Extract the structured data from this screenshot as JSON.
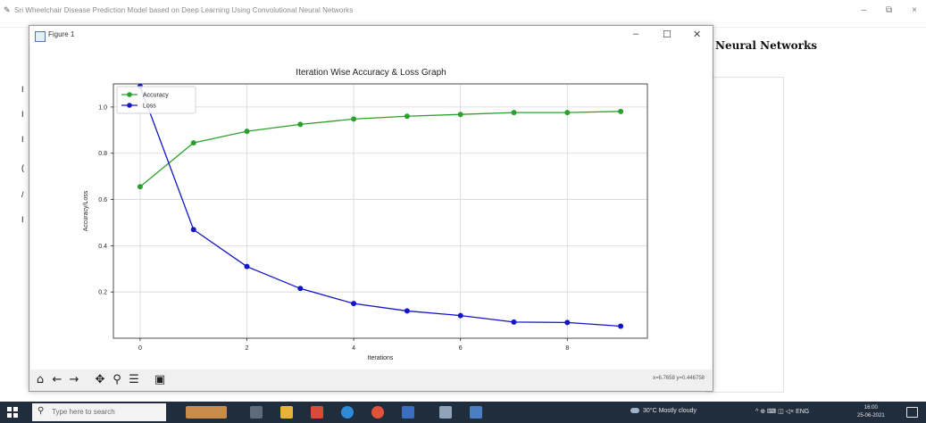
{
  "app": {
    "title": "Sri Wheelchair Disease Prediction Model based on Deep Learning Using Convolutional Neural Networks",
    "controls": [
      "–",
      "⧉",
      "×"
    ],
    "background_heading": "Neural Networks",
    "left_marks": [
      "I",
      "I",
      "I",
      "(",
      "/",
      "I"
    ]
  },
  "figure": {
    "window_title": "Figure 1",
    "controls": [
      "–",
      "☐",
      "✕"
    ],
    "coords_text": "x=6.7658    y=0.446758",
    "toolbar": [
      "home-icon",
      "back-icon",
      "forward-icon",
      "pan-icon",
      "zoom-icon",
      "configure-icon",
      "save-icon"
    ]
  },
  "chart_data": {
    "type": "line",
    "title": "Iteration Wise Accuracy & Loss Graph",
    "xlabel": "Iterations",
    "ylabel": "Accuracy/Loss",
    "x": [
      0,
      1,
      2,
      3,
      4,
      5,
      6,
      7,
      8,
      9
    ],
    "xlim": [
      -0.5,
      9.5
    ],
    "ylim": [
      0.0,
      1.1
    ],
    "xticks": [
      "0",
      "2",
      "4",
      "6",
      "8"
    ],
    "yticks": [
      "0.2",
      "0.4",
      "0.6",
      "0.8",
      "1.0"
    ],
    "grid": true,
    "legend_position": "top-left",
    "series": [
      {
        "name": "Accuracy",
        "color": "#2ca02c",
        "values": [
          0.655,
          0.845,
          0.895,
          0.925,
          0.948,
          0.96,
          0.968,
          0.976,
          0.976,
          0.981
        ]
      },
      {
        "name": "Loss",
        "color": "#1414c8",
        "values": [
          1.09,
          0.47,
          0.31,
          0.215,
          0.15,
          0.118,
          0.098,
          0.07,
          0.068,
          0.052
        ]
      }
    ]
  },
  "taskbar": {
    "search_placeholder": "Type here to search",
    "weather": "30°C  Mostly cloudy",
    "system_tray": "^  ⊕  ⌨  ◫  ◁×  ENG",
    "time": "16:00",
    "date": "25-06-2021"
  }
}
